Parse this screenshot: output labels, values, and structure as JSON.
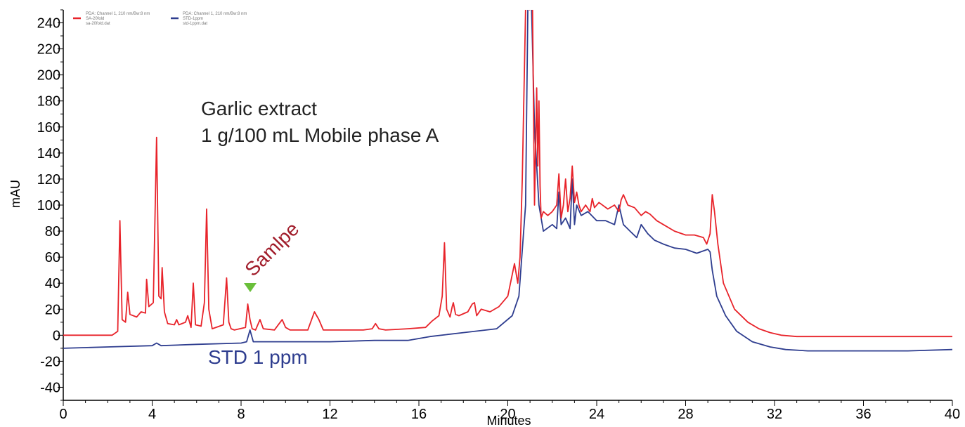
{
  "chart_data": {
    "type": "line",
    "xlabel": "Minutes",
    "ylabel": "mAU",
    "xlim": [
      0,
      40
    ],
    "ylim": [
      -50,
      250
    ],
    "x_ticks": [
      0,
      4,
      8,
      12,
      16,
      20,
      24,
      28,
      32,
      36,
      40
    ],
    "y_ticks": [
      -40,
      -20,
      0,
      20,
      40,
      60,
      80,
      100,
      120,
      140,
      160,
      180,
      200,
      220,
      240
    ],
    "grid": false,
    "legend_position": "top-left",
    "legend": [
      {
        "color": "#e8232a",
        "lines": [
          "PDA: Channel 1, 210 nm/Bw:8 nm",
          "SA-20fold",
          "sa-20fold.dat"
        ]
      },
      {
        "color": "#2e3d8f",
        "lines": [
          "PDA: Channel 1, 210 nm/Bw:8 nm",
          "STD-1ppm",
          "std-1ppm.dat"
        ]
      }
    ],
    "annotations": {
      "title_line1": "Garlic extract",
      "title_line2": "1 g/100 mL Mobile phase A",
      "sample_label": "Samlpe",
      "std_label": "STD 1 ppm",
      "marker_color": "#6abf3a",
      "sample_color": "#a11d2b",
      "std_color": "#2e3d8f"
    },
    "series": [
      {
        "color": "#e8232a",
        "x": [
          0,
          2.2,
          2.45,
          2.55,
          2.65,
          2.8,
          2.9,
          3.0,
          3.3,
          3.5,
          3.7,
          3.75,
          3.85,
          4.05,
          4.2,
          4.3,
          4.4,
          4.45,
          4.55,
          4.7,
          5.0,
          5.1,
          5.2,
          5.5,
          5.6,
          5.7,
          5.75,
          5.85,
          5.95,
          6.2,
          6.35,
          6.45,
          6.55,
          6.7,
          7.2,
          7.35,
          7.45,
          7.55,
          7.7,
          8.2,
          8.3,
          8.4,
          8.5,
          8.65,
          8.85,
          9.0,
          9.5,
          9.85,
          10.0,
          10.2,
          11.0,
          11.3,
          11.5,
          11.7,
          12.5,
          13.5,
          13.9,
          14.05,
          14.2,
          14.5,
          15.5,
          16.3,
          16.6,
          16.9,
          17.05,
          17.15,
          17.25,
          17.4,
          17.5,
          17.55,
          17.65,
          17.8,
          18.2,
          18.4,
          18.5,
          18.6,
          18.8,
          19.2,
          19.6,
          20.0,
          20.3,
          20.45,
          20.55,
          20.65,
          20.8,
          20.88,
          20.93,
          20.98,
          21.1,
          21.2,
          21.3,
          21.35,
          21.4,
          21.45,
          21.5,
          21.6,
          21.8,
          22.0,
          22.2,
          22.3,
          22.4,
          22.5,
          22.6,
          22.7,
          22.8,
          22.9,
          23.0,
          23.1,
          23.2,
          23.3,
          23.5,
          23.7,
          23.8,
          23.9,
          24.1,
          24.5,
          24.8,
          25.0,
          25.1,
          25.2,
          25.4,
          25.7,
          26.0,
          26.2,
          26.4,
          26.7,
          27.0,
          27.5,
          28.0,
          28.4,
          28.8,
          28.95,
          29.1,
          29.2,
          29.3,
          29.45,
          29.7,
          30.2,
          30.8,
          31.3,
          31.8,
          32.3,
          33.0,
          35.0,
          38.0,
          40.0
        ],
        "y": [
          0,
          0,
          3,
          88,
          12,
          10,
          33,
          16,
          14,
          18,
          17,
          43,
          22,
          25,
          152,
          30,
          28,
          52,
          18,
          9,
          8,
          12,
          8,
          10,
          15,
          9,
          6,
          40,
          8,
          7,
          25,
          97,
          20,
          5,
          8,
          44,
          10,
          5,
          4,
          6,
          24,
          12,
          5,
          4,
          12,
          5,
          4,
          12,
          6,
          4,
          4,
          18,
          12,
          4,
          4,
          4,
          5,
          9,
          5,
          4,
          5,
          6,
          11,
          15,
          30,
          71,
          20,
          14,
          22,
          25,
          16,
          15,
          18,
          24,
          25,
          15,
          20,
          18,
          22,
          30,
          55,
          40,
          60,
          120,
          250,
          300,
          280,
          250,
          270,
          100,
          190,
          130,
          180,
          115,
          90,
          95,
          92,
          95,
          100,
          124,
          90,
          100,
          120,
          95,
          105,
          130,
          102,
          110,
          100,
          95,
          100,
          95,
          105,
          98,
          102,
          97,
          100,
          95,
          104,
          108,
          100,
          98,
          92,
          95,
          93,
          88,
          85,
          80,
          77,
          77,
          75,
          70,
          78,
          108,
          95,
          70,
          40,
          20,
          10,
          5,
          2,
          0,
          -1,
          -1,
          -1,
          -1
        ]
      },
      {
        "color": "#2e3d8f",
        "x": [
          0,
          2.0,
          4.0,
          4.2,
          4.4,
          6.0,
          8.0,
          8.25,
          8.4,
          8.55,
          8.8,
          10.0,
          12.0,
          14.0,
          15.5,
          16.5,
          18.0,
          19.5,
          20.2,
          20.5,
          20.8,
          20.9,
          21.0,
          21.2,
          21.4,
          21.6,
          22.0,
          22.2,
          22.3,
          22.4,
          22.6,
          22.8,
          22.9,
          23.0,
          23.1,
          23.3,
          23.6,
          24.0,
          24.4,
          24.8,
          25.0,
          25.2,
          25.5,
          25.8,
          26.0,
          26.3,
          26.6,
          27.0,
          27.5,
          28.0,
          28.5,
          29.0,
          29.1,
          29.2,
          29.4,
          29.8,
          30.3,
          31.0,
          31.8,
          32.5,
          33.5,
          35.0,
          38.0,
          40.0
        ],
        "y": [
          -10,
          -9,
          -8,
          -6,
          -8,
          -7,
          -6,
          -5,
          4,
          -5,
          -5,
          -5,
          -5,
          -4,
          -4,
          -1,
          2,
          5,
          15,
          30,
          100,
          250,
          300,
          160,
          100,
          80,
          85,
          82,
          110,
          85,
          90,
          82,
          120,
          85,
          100,
          92,
          95,
          88,
          88,
          85,
          100,
          85,
          80,
          75,
          85,
          78,
          73,
          70,
          67,
          66,
          63,
          66,
          64,
          50,
          30,
          15,
          3,
          -5,
          -9,
          -11,
          -12,
          -12,
          -12,
          -11
        ]
      }
    ]
  }
}
